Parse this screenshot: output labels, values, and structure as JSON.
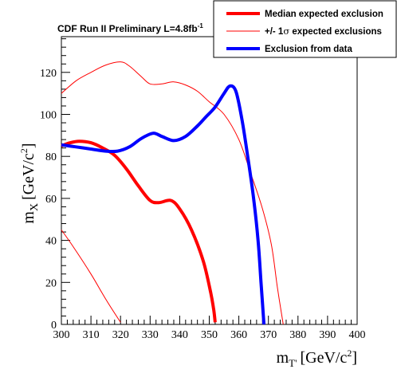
{
  "chart_data": {
    "type": "line",
    "title": "CDF Run II Preliminary L=4.8fb",
    "title_superscript": "-1",
    "xlabel": "m",
    "xlabel_subscript": "T'",
    "xlabel_unit": "[GeV/c",
    "xlabel_unit_sup": "2",
    "xlabel_unit_end": "]",
    "ylabel": "m",
    "ylabel_subscript": "X",
    "ylabel_unit": "[GeV/c",
    "ylabel_unit_sup": "2",
    "ylabel_unit_end": "]",
    "xlim": [
      300,
      400
    ],
    "ylim": [
      0,
      137
    ],
    "xticks": [
      300,
      310,
      320,
      330,
      340,
      350,
      360,
      370,
      380,
      390,
      400
    ],
    "yticks": [
      0,
      20,
      40,
      60,
      80,
      100,
      120
    ],
    "legend_position": "top-right",
    "series": [
      {
        "name": "Median expected exclusion",
        "color": "#ff0000",
        "style": "thick",
        "points": [
          [
            300,
            85
          ],
          [
            303,
            86.5
          ],
          [
            306,
            87.2
          ],
          [
            310,
            86.5
          ],
          [
            314,
            84
          ],
          [
            318,
            80.5
          ],
          [
            322,
            74
          ],
          [
            326,
            66
          ],
          [
            330,
            59
          ],
          [
            333,
            58
          ],
          [
            337,
            59
          ],
          [
            340,
            55
          ],
          [
            344,
            45
          ],
          [
            348,
            30
          ],
          [
            350.5,
            15
          ],
          [
            351.5,
            7
          ],
          [
            352,
            1
          ]
        ]
      },
      {
        "name": "+/- 1σ expected exclusions",
        "label_prefix": "+/- 1",
        "label_symbol": "σ",
        "label_suffix": " expected exclusions",
        "color": "#ff0000",
        "style": "thin",
        "points": [
          [
            300,
            110
          ],
          [
            305,
            116
          ],
          [
            310,
            120
          ],
          [
            315,
            123.5
          ],
          [
            320,
            125
          ],
          [
            323,
            123
          ],
          [
            327,
            118
          ],
          [
            330,
            114.5
          ],
          [
            334,
            114.5
          ],
          [
            338,
            115.5
          ],
          [
            342,
            114
          ],
          [
            346,
            111
          ],
          [
            350,
            106
          ],
          [
            355,
            100
          ],
          [
            360,
            88
          ],
          [
            364,
            72
          ],
          [
            368,
            55
          ],
          [
            371,
            38
          ],
          [
            373,
            18
          ],
          [
            375,
            0
          ]
        ]
      },
      {
        "name": "",
        "color": "#ff0000",
        "style": "thin",
        "points": [
          [
            300,
            45
          ],
          [
            304,
            37
          ],
          [
            310,
            24
          ],
          [
            315,
            12
          ],
          [
            320,
            1
          ]
        ]
      },
      {
        "name": "Exclusion from data",
        "color": "#0000ff",
        "style": "thick",
        "points": [
          [
            300,
            85.5
          ],
          [
            305,
            84.5
          ],
          [
            310,
            83.5
          ],
          [
            315,
            82.5
          ],
          [
            319,
            82.5
          ],
          [
            323,
            84.5
          ],
          [
            327,
            88.5
          ],
          [
            331,
            91
          ],
          [
            334,
            89.5
          ],
          [
            338,
            87.5
          ],
          [
            342,
            89.5
          ],
          [
            346,
            94.5
          ],
          [
            349,
            99
          ],
          [
            352,
            103.5
          ],
          [
            355,
            110
          ],
          [
            357,
            113.5
          ],
          [
            359,
            111
          ],
          [
            361,
            98
          ],
          [
            363,
            80
          ],
          [
            365,
            60
          ],
          [
            366.5,
            40
          ],
          [
            367.5,
            20
          ],
          [
            368.5,
            0
          ]
        ]
      }
    ]
  }
}
